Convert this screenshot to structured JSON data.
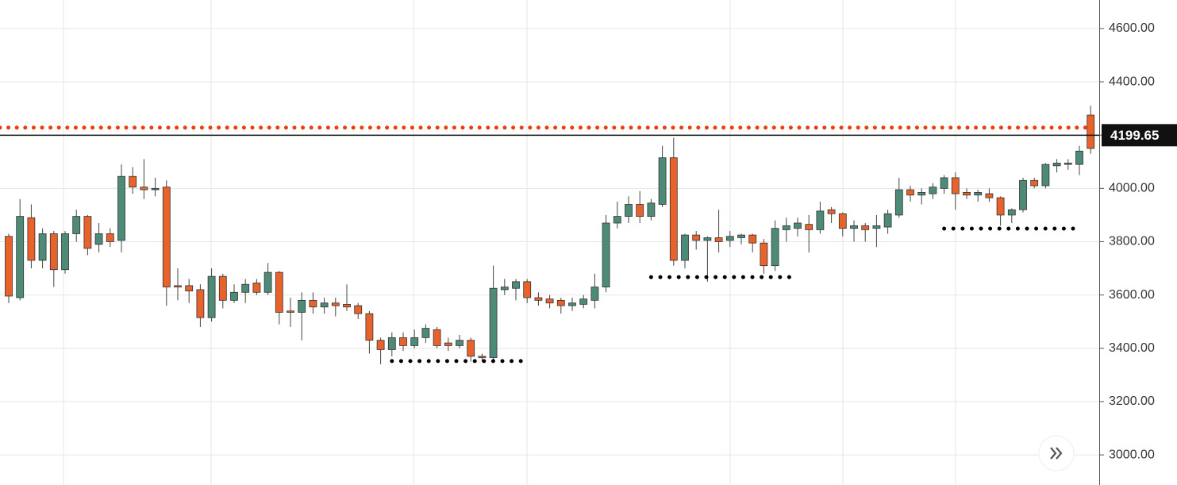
{
  "chart_data": {
    "type": "candlestick",
    "open": [
      3820,
      3590,
      3890,
      3730,
      3830,
      3695,
      3830,
      3895,
      3790,
      3830,
      3805,
      4045,
      4005,
      3995,
      4005,
      3635,
      3635,
      3620,
      3515,
      3670,
      3580,
      3610,
      3645,
      3610,
      3685,
      3540,
      3535,
      3580,
      3555,
      3570,
      3565,
      3560,
      3530,
      3430,
      3395,
      3440,
      3410,
      3440,
      3470,
      3420,
      3410,
      3430,
      3370,
      3365,
      3620,
      3625,
      3650,
      3590,
      3585,
      3580,
      3560,
      3565,
      3580,
      3630,
      3870,
      3895,
      3940,
      3895,
      3940,
      4115,
      3730,
      3825,
      3805,
      3815,
      3805,
      3815,
      3825,
      3795,
      3710,
      3845,
      3850,
      3865,
      3845,
      3920,
      3905,
      3850,
      3860,
      3850,
      3855,
      3900,
      3995,
      3975,
      3980,
      4000,
      4040,
      3985,
      3975,
      3980,
      3965,
      3900,
      3920,
      4030,
      4010,
      4085,
      4090,
      4090,
      4275
    ],
    "high": [
      3830,
      3960,
      3940,
      3850,
      3840,
      3840,
      3920,
      3900,
      3870,
      3850,
      4090,
      4080,
      4110,
      4040,
      4030,
      3700,
      3660,
      3640,
      3700,
      3680,
      3640,
      3660,
      3660,
      3720,
      3690,
      3590,
      3610,
      3610,
      3590,
      3590,
      3640,
      3570,
      3540,
      3440,
      3460,
      3460,
      3470,
      3490,
      3480,
      3440,
      3450,
      3440,
      3380,
      3710,
      3660,
      3660,
      3660,
      3610,
      3600,
      3590,
      3590,
      3600,
      3680,
      3900,
      3950,
      3970,
      3990,
      3960,
      4160,
      4190,
      3830,
      3840,
      3820,
      3920,
      3840,
      3830,
      3830,
      3810,
      3880,
      3890,
      3890,
      3900,
      3950,
      3930,
      3910,
      3880,
      3870,
      3900,
      3920,
      4040,
      4010,
      4000,
      4020,
      4050,
      4060,
      4000,
      3995,
      4000,
      3970,
      3925,
      4040,
      4040,
      4095,
      4110,
      4110,
      4160,
      4310
    ],
    "low": [
      3570,
      3580,
      3700,
      3700,
      3630,
      3680,
      3800,
      3750,
      3760,
      3780,
      3760,
      3980,
      3960,
      3970,
      3560,
      3580,
      3570,
      3480,
      3500,
      3550,
      3570,
      3570,
      3600,
      3600,
      3490,
      3480,
      3430,
      3530,
      3530,
      3520,
      3540,
      3510,
      3380,
      3340,
      3370,
      3390,
      3400,
      3420,
      3400,
      3390,
      3400,
      3350,
      3350,
      3350,
      3600,
      3580,
      3570,
      3560,
      3550,
      3530,
      3540,
      3550,
      3550,
      3610,
      3850,
      3870,
      3870,
      3880,
      3930,
      3710,
      3700,
      3770,
      3650,
      3760,
      3780,
      3790,
      3760,
      3680,
      3690,
      3800,
      3820,
      3760,
      3830,
      3870,
      3820,
      3800,
      3800,
      3780,
      3830,
      3890,
      3950,
      3940,
      3960,
      3980,
      3920,
      3960,
      3950,
      3950,
      3860,
      3870,
      3910,
      4000,
      4000,
      4060,
      4070,
      4050,
      4130
    ],
    "close": [
      3596,
      3895,
      3730,
      3830,
      3695,
      3830,
      3895,
      3775,
      3830,
      3800,
      4045,
      4005,
      3995,
      4000,
      3630,
      3630,
      3615,
      3515,
      3670,
      3580,
      3610,
      3640,
      3610,
      3685,
      3535,
      3535,
      3580,
      3555,
      3570,
      3560,
      3555,
      3530,
      3430,
      3395,
      3440,
      3410,
      3440,
      3475,
      3410,
      3410,
      3430,
      3370,
      3365,
      3625,
      3630,
      3650,
      3590,
      3580,
      3570,
      3560,
      3570,
      3585,
      3630,
      3870,
      3895,
      3940,
      3895,
      3945,
      4115,
      3730,
      3825,
      3805,
      3815,
      3800,
      3820,
      3825,
      3795,
      3710,
      3850,
      3860,
      3870,
      3845,
      3915,
      3905,
      3850,
      3860,
      3845,
      3860,
      3905,
      3995,
      3975,
      3985,
      4005,
      4040,
      3980,
      3975,
      3985,
      3965,
      3900,
      3920,
      4030,
      4010,
      4090,
      4095,
      4095,
      4140,
      4150
    ],
    "up_color": "#4e8a78",
    "down_color": "#e8622c",
    "ylim": [
      2887,
      4707
    ],
    "yticks": [
      {
        "value": 3000,
        "label": "3000.00"
      },
      {
        "value": 3200,
        "label": "3200.00"
      },
      {
        "value": 3400,
        "label": "3400.00"
      },
      {
        "value": 3600,
        "label": "3600.00"
      },
      {
        "value": 3800,
        "label": "3800.00"
      },
      {
        "value": 4000,
        "label": "4000.00"
      },
      {
        "value": 4200,
        "label": "4200.00"
      },
      {
        "value": 4400,
        "label": "4400.00"
      },
      {
        "value": 4600,
        "label": "4600.00"
      }
    ],
    "grid": true,
    "current_price": 4199.65,
    "levels": [
      {
        "value": 4228,
        "color": "#f03c0c",
        "from": 0,
        "to": 96
      },
      {
        "value": 3352,
        "color": "#000000",
        "from": 34,
        "to": 46
      },
      {
        "value": 3667,
        "color": "#000000",
        "from": 57,
        "to": 70
      },
      {
        "value": 3849,
        "color": "#000000",
        "from": 83,
        "to": 95
      }
    ]
  }
}
